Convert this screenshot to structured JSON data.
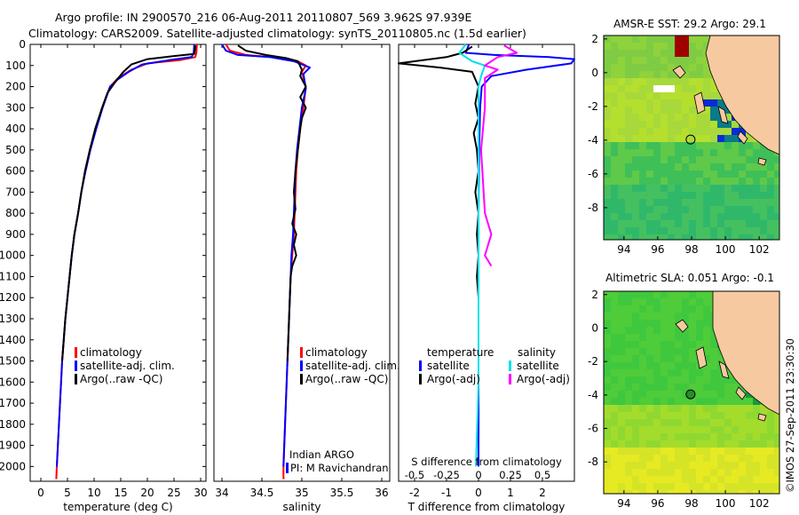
{
  "header": {
    "line1": "Argo profile: IN 2900570_216 06-Aug-2011 20110807_569 3.962S 97.939E",
    "line2": "Climatology: CARS2009. Satellite-adjusted climatology: synTS_20110805.nc (1.5d earlier)"
  },
  "colors": {
    "climatology": "#ff0000",
    "satellite": "#0000ff",
    "argo": "#000000",
    "salinity_satellite": "#00e0e8",
    "salinity_argo": "#ff00ff",
    "land": "#f7c9a1",
    "sea_green": "#2ecc40",
    "sea_yellow": "#e8f020"
  },
  "credit": "©IMOS 27-Sep-2011 23:30:30",
  "chart_data": [
    {
      "id": "temperature",
      "type": "line",
      "xlabel": "temperature (deg C)",
      "xlim": [
        -2,
        31
      ],
      "xticks": [
        0,
        5,
        10,
        15,
        20,
        25,
        30
      ],
      "ylim": [
        2070,
        0
      ],
      "yticks": [
        0,
        100,
        200,
        300,
        400,
        500,
        600,
        700,
        800,
        900,
        1000,
        1100,
        1200,
        1300,
        1400,
        1500,
        1600,
        1700,
        1800,
        1900,
        2000
      ],
      "legend": [
        {
          "label": "climatology",
          "color": "#ff0000"
        },
        {
          "label": "satellite-adj. clim.",
          "color": "#0000ff"
        },
        {
          "label": "Argo(..raw -QC)",
          "color": "#000000"
        }
      ],
      "series": [
        {
          "name": "climatology",
          "color": "#ff0000",
          "points": [
            [
              29.3,
              0
            ],
            [
              29.2,
              40
            ],
            [
              29.0,
              60
            ],
            [
              26,
              75
            ],
            [
              20,
              90
            ],
            [
              17,
              120
            ],
            [
              14.5,
              160
            ],
            [
              13,
              200
            ],
            [
              11.5,
              300
            ],
            [
              10.3,
              400
            ],
            [
              9.2,
              500
            ],
            [
              8.3,
              600
            ],
            [
              7.6,
              700
            ],
            [
              7.0,
              800
            ],
            [
              6.3,
              900
            ],
            [
              5.8,
              1000
            ],
            [
              5.4,
              1100
            ],
            [
              5.0,
              1200
            ],
            [
              4.6,
              1300
            ],
            [
              4.3,
              1400
            ],
            [
              4.0,
              1500
            ],
            [
              3.8,
              1600
            ],
            [
              3.6,
              1700
            ],
            [
              3.4,
              1800
            ],
            [
              3.2,
              1900
            ],
            [
              3.0,
              2000
            ],
            [
              2.9,
              2060
            ]
          ]
        },
        {
          "name": "satellite-adj. clim.",
          "color": "#0000ff",
          "points": [
            [
              28.8,
              0
            ],
            [
              28.7,
              40
            ],
            [
              28.3,
              60
            ],
            [
              24,
              75
            ],
            [
              19,
              95
            ],
            [
              16.5,
              130
            ],
            [
              14.5,
              165
            ],
            [
              13,
              200
            ],
            [
              11.6,
              300
            ],
            [
              10.4,
              400
            ],
            [
              9.3,
              500
            ],
            [
              8.4,
              600
            ],
            [
              7.6,
              700
            ],
            [
              7.0,
              800
            ],
            [
              6.3,
              900
            ],
            [
              5.8,
              1000
            ],
            [
              5.4,
              1100
            ],
            [
              5.0,
              1200
            ],
            [
              4.6,
              1300
            ],
            [
              4.3,
              1400
            ],
            [
              4.0,
              1500
            ],
            [
              3.8,
              1600
            ],
            [
              3.6,
              1700
            ],
            [
              3.4,
              1800
            ],
            [
              3.2,
              1900
            ],
            [
              3.0,
              2000
            ]
          ]
        },
        {
          "name": "Argo(..raw -QC)",
          "color": "#000000",
          "points": [
            [
              29.0,
              5
            ],
            [
              28.9,
              30
            ],
            [
              28.8,
              45
            ],
            [
              25,
              55
            ],
            [
              20,
              70
            ],
            [
              17,
              95
            ],
            [
              15.5,
              130
            ],
            [
              14.2,
              170
            ],
            [
              12.5,
              230
            ],
            [
              11.5,
              300
            ],
            [
              10.2,
              400
            ],
            [
              9.2,
              500
            ],
            [
              8.3,
              600
            ],
            [
              7.6,
              700
            ],
            [
              7.0,
              800
            ],
            [
              6.3,
              900
            ],
            [
              5.8,
              1000
            ],
            [
              5.4,
              1100
            ],
            [
              5.0,
              1200
            ],
            [
              4.6,
              1300
            ],
            [
              4.3,
              1400
            ],
            [
              4.0,
              1500
            ]
          ]
        }
      ]
    },
    {
      "id": "salinity",
      "type": "line",
      "xlabel": "salinity",
      "xlim": [
        33.9,
        36.1
      ],
      "xticks": [
        34,
        34.5,
        35,
        35.5,
        36
      ],
      "ylim": [
        2070,
        0
      ],
      "legend": [
        {
          "label": "climatology",
          "color": "#ff0000"
        },
        {
          "label": "satellite-adj. clim.",
          "color": "#0000ff"
        },
        {
          "label": "Argo(..raw -QC)",
          "color": "#000000"
        }
      ],
      "annotation": [
        "Indian ARGO",
        "PI: M Ravichandran"
      ],
      "series": [
        {
          "name": "climatology",
          "color": "#ff0000",
          "points": [
            [
              34.05,
              0
            ],
            [
              34.1,
              30
            ],
            [
              34.3,
              50
            ],
            [
              34.75,
              65
            ],
            [
              34.95,
              80
            ],
            [
              35.05,
              100
            ],
            [
              35.0,
              130
            ],
            [
              35.05,
              200
            ],
            [
              35.02,
              300
            ],
            [
              34.98,
              400
            ],
            [
              34.95,
              500
            ],
            [
              34.93,
              600
            ],
            [
              34.92,
              700
            ],
            [
              34.91,
              800
            ],
            [
              34.9,
              900
            ],
            [
              34.88,
              1000
            ],
            [
              34.86,
              1100
            ],
            [
              34.85,
              1200
            ],
            [
              34.84,
              1300
            ],
            [
              34.83,
              1400
            ],
            [
              34.82,
              1500
            ],
            [
              34.81,
              1600
            ],
            [
              34.8,
              1700
            ],
            [
              34.79,
              1800
            ],
            [
              34.78,
              1900
            ],
            [
              34.77,
              2000
            ],
            [
              34.77,
              2060
            ]
          ]
        },
        {
          "name": "satellite-adj. clim.",
          "color": "#0000ff",
          "points": [
            [
              34.0,
              0
            ],
            [
              34.05,
              30
            ],
            [
              34.2,
              50
            ],
            [
              34.6,
              60
            ],
            [
              34.9,
              80
            ],
            [
              35.1,
              110
            ],
            [
              35.02,
              140
            ],
            [
              35.05,
              210
            ],
            [
              35.0,
              300
            ],
            [
              34.97,
              400
            ],
            [
              34.94,
              500
            ],
            [
              34.92,
              600
            ],
            [
              34.91,
              700
            ],
            [
              34.9,
              800
            ],
            [
              34.89,
              900
            ],
            [
              34.87,
              1000
            ],
            [
              34.86,
              1100
            ],
            [
              34.85,
              1200
            ],
            [
              34.84,
              1300
            ],
            [
              34.83,
              1400
            ],
            [
              34.82,
              1500
            ],
            [
              34.81,
              1600
            ],
            [
              34.8,
              1700
            ],
            [
              34.79,
              1800
            ],
            [
              34.78,
              1900
            ],
            [
              34.77,
              2000
            ]
          ]
        },
        {
          "name": "Argo(..raw -QC)",
          "color": "#000000",
          "points": [
            [
              34.2,
              5
            ],
            [
              34.3,
              30
            ],
            [
              34.55,
              50
            ],
            [
              34.8,
              65
            ],
            [
              34.95,
              80
            ],
            [
              35.0,
              120
            ],
            [
              34.98,
              150
            ],
            [
              35.05,
              200
            ],
            [
              34.98,
              250
            ],
            [
              35.05,
              300
            ],
            [
              35.0,
              350
            ],
            [
              34.98,
              400
            ],
            [
              34.95,
              500
            ],
            [
              34.92,
              600
            ],
            [
              34.9,
              700
            ],
            [
              34.92,
              780
            ],
            [
              34.88,
              850
            ],
            [
              34.93,
              900
            ],
            [
              34.9,
              950
            ],
            [
              34.93,
              1000
            ],
            [
              34.88,
              1050
            ],
            [
              34.86,
              1100
            ],
            [
              34.85,
              1200
            ],
            [
              34.84,
              1300
            ],
            [
              34.83,
              1400
            ],
            [
              34.82,
              1500
            ]
          ]
        }
      ]
    },
    {
      "id": "difference",
      "type": "line",
      "xlabel_bottom": "T difference from climatology",
      "xlabel_top": "S difference from climatology",
      "xlim": [
        -2.5,
        3
      ],
      "xticks_bottom": [
        -2,
        -1,
        0,
        1,
        2
      ],
      "xticks_top": [
        -0.5,
        -0.25,
        0,
        0.25,
        0.5
      ],
      "ylim": [
        2070,
        0
      ],
      "legend_headers": [
        "temperature",
        "salinity"
      ],
      "legend": [
        {
          "label": "satellite",
          "color": "#0000ff",
          "group": "temperature"
        },
        {
          "label": "Argo(-adj)",
          "color": "#000000",
          "group": "temperature"
        },
        {
          "label": "satellite",
          "color": "#00e0e8",
          "group": "salinity"
        },
        {
          "label": "Argo(-adj)",
          "color": "#ff00ff",
          "group": "salinity"
        }
      ],
      "series": [
        {
          "name": "temperature satellite",
          "color": "#0000ff",
          "points": [
            [
              -0.3,
              0
            ],
            [
              -0.4,
              40
            ],
            [
              0.5,
              50
            ],
            [
              2.2,
              60
            ],
            [
              3.0,
              70
            ],
            [
              2.9,
              90
            ],
            [
              1.5,
              120
            ],
            [
              0.4,
              150
            ],
            [
              0.1,
              200
            ],
            [
              0.05,
              300
            ],
            [
              0.02,
              500
            ],
            [
              0,
              800
            ],
            [
              0,
              1200
            ],
            [
              0,
              1600
            ],
            [
              0,
              2000
            ]
          ]
        },
        {
          "name": "temperature Argo(-adj)",
          "color": "#000000",
          "points": [
            [
              -0.2,
              10
            ],
            [
              -0.5,
              40
            ],
            [
              -1.0,
              60
            ],
            [
              -2.5,
              90
            ],
            [
              -1.2,
              110
            ],
            [
              -0.2,
              130
            ],
            [
              0,
              200
            ],
            [
              -0.1,
              280
            ],
            [
              0,
              350
            ],
            [
              -0.15,
              420
            ],
            [
              -0.05,
              500
            ],
            [
              0,
              600
            ],
            [
              -0.1,
              700
            ],
            [
              0,
              800
            ],
            [
              -0.05,
              900
            ],
            [
              0,
              1000
            ],
            [
              -0.05,
              1100
            ],
            [
              0,
              1200
            ],
            [
              0,
              1300
            ],
            [
              0,
              1400
            ],
            [
              0,
              1500
            ]
          ]
        },
        {
          "name": "salinity satellite",
          "color": "#00e0e8",
          "points": [
            [
              -0.1,
              0
            ],
            [
              -0.15,
              40
            ],
            [
              -0.05,
              80
            ],
            [
              0.05,
              100
            ],
            [
              0.02,
              150
            ],
            [
              0,
              200
            ],
            [
              0,
              300
            ],
            [
              0,
              500
            ],
            [
              0,
              800
            ],
            [
              0,
              1200
            ],
            [
              0,
              1600
            ],
            [
              -0.02,
              2000
            ]
          ]
        },
        {
          "name": "salinity Argo(-adj)",
          "color": "#ff00ff",
          "points": [
            [
              0.2,
              5
            ],
            [
              0.3,
              40
            ],
            [
              0.15,
              60
            ],
            [
              0.05,
              100
            ],
            [
              0.15,
              120
            ],
            [
              0.05,
              160
            ],
            [
              0.05,
              300
            ],
            [
              0.02,
              500
            ],
            [
              0.05,
              800
            ],
            [
              0.1,
              900
            ],
            [
              0.05,
              1000
            ],
            [
              0.1,
              1050
            ]
          ]
        }
      ]
    },
    {
      "id": "sst_map",
      "type": "heatmap",
      "title": "AMSR-E SST: 29.2  Argo: 29.1",
      "xlim": [
        92.8,
        103.2
      ],
      "ylim": [
        -9.9,
        2.2
      ],
      "xticks": [
        94,
        96,
        98,
        100,
        102
      ],
      "yticks": [
        2,
        0,
        -2,
        -4,
        -6,
        -8
      ],
      "marker": {
        "lon": 97.939,
        "lat": -3.962
      }
    },
    {
      "id": "sla_map",
      "type": "heatmap",
      "title": "Altimetric SLA: 0.051  Argo: -0.1",
      "xlim": [
        92.8,
        103.2
      ],
      "ylim": [
        -9.9,
        2.2
      ],
      "xticks": [
        94,
        96,
        98,
        100,
        102
      ],
      "yticks": [
        2,
        0,
        -2,
        -4,
        -6,
        -8
      ],
      "marker": {
        "lon": 97.939,
        "lat": -3.962
      }
    }
  ]
}
